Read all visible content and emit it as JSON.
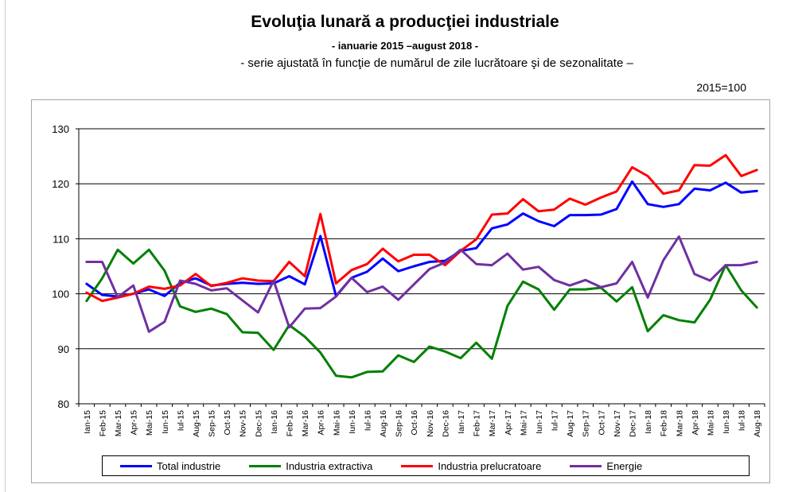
{
  "chart_data": {
    "type": "line",
    "title": "Evoluţia lunară a producţiei industriale",
    "subtitle": "- ianuarie 2015 –august 2018 -",
    "subtitle2": "- serie ajustată în funcţie de numărul de zile lucrătoare şi de sezonalitate –",
    "baseline_note": "2015=100",
    "xlabel": "",
    "ylabel": "",
    "ylim": [
      80,
      130
    ],
    "yticks": [
      80,
      90,
      100,
      110,
      120,
      130
    ],
    "grid": true,
    "legend_position": "bottom",
    "categories": [
      "Ian-15",
      "Feb-15",
      "Mar-15",
      "Apr-15",
      "Mai-15",
      "Iun-15",
      "Iul-15",
      "Aug-15",
      "Sep-15",
      "Oct-15",
      "Nov-15",
      "Dec-15",
      "Ian-16",
      "Feb-16",
      "Mar-16",
      "Apr-16",
      "Mai-16",
      "Iun-16",
      "Iul-16",
      "Aug-16",
      "Sep-16",
      "Oct-16",
      "Nov-16",
      "Dec-16",
      "Ian-17",
      "Feb-17",
      "Mar-17",
      "Apr-17",
      "Mai-17",
      "Iun-17",
      "Iul-17",
      "Aug-17",
      "Sep-17",
      "Oct-17",
      "Nov-17",
      "Dec-17",
      "Ian-18",
      "Feb-18",
      "Mar-18",
      "Apr-18",
      "Mai-18",
      "Iun-18",
      "Iul-18",
      "Aug-18"
    ],
    "series": [
      {
        "name": "Total industrie",
        "color": "#0000ff",
        "values": [
          101.8,
          99.8,
          99.5,
          100.0,
          100.8,
          99.6,
          102.0,
          102.8,
          101.5,
          101.8,
          102.0,
          101.8,
          101.9,
          103.2,
          101.7,
          110.5,
          99.6,
          102.9,
          104.0,
          106.4,
          104.1,
          105.0,
          105.8,
          106.0,
          107.8,
          108.3,
          111.9,
          112.6,
          114.6,
          113.2,
          112.3,
          114.3,
          114.3,
          114.4,
          115.4,
          120.4,
          116.3,
          115.8,
          116.3,
          119.1,
          118.8,
          120.2,
          118.4,
          118.7
        ]
      },
      {
        "name": "Industria extractiva",
        "color": "#008000",
        "values": [
          98.7,
          102.8,
          108.0,
          105.5,
          108.0,
          104.2,
          97.7,
          96.7,
          97.3,
          96.3,
          93.0,
          92.9,
          89.8,
          94.3,
          92.2,
          89.3,
          85.1,
          84.8,
          85.8,
          85.9,
          88.8,
          87.6,
          90.4,
          89.5,
          88.3,
          91.1,
          88.2,
          97.8,
          102.2,
          100.8,
          97.1,
          100.8,
          100.8,
          101.1,
          98.6,
          101.2,
          93.2,
          96.1,
          95.2,
          94.8,
          98.9,
          105.2,
          100.6,
          97.5
        ]
      },
      {
        "name": "Industria prelucratoare",
        "color": "#ff0000",
        "values": [
          100.2,
          98.7,
          99.3,
          100.0,
          101.3,
          100.9,
          101.5,
          103.6,
          101.4,
          102.0,
          102.8,
          102.4,
          102.3,
          105.8,
          103.2,
          114.5,
          101.9,
          104.3,
          105.4,
          108.2,
          105.9,
          107.1,
          107.1,
          105.2,
          107.8,
          109.9,
          114.4,
          114.6,
          117.2,
          115.0,
          115.3,
          117.3,
          116.2,
          117.5,
          118.6,
          123.0,
          121.4,
          118.2,
          118.8,
          123.4,
          123.3,
          125.2,
          121.4,
          122.5
        ]
      },
      {
        "name": "Energie",
        "color": "#7030a0",
        "values": [
          105.8,
          105.8,
          99.4,
          101.5,
          93.1,
          94.9,
          102.4,
          101.8,
          100.6,
          101.0,
          98.8,
          96.6,
          102.4,
          93.9,
          97.3,
          97.4,
          99.5,
          102.9,
          100.3,
          101.3,
          98.9,
          101.7,
          104.5,
          105.7,
          108.0,
          105.4,
          105.2,
          107.3,
          104.4,
          104.9,
          102.5,
          101.5,
          102.5,
          101.2,
          101.9,
          105.8,
          99.3,
          106.1,
          110.4,
          103.6,
          102.4,
          105.2,
          105.2,
          105.8
        ]
      }
    ]
  }
}
